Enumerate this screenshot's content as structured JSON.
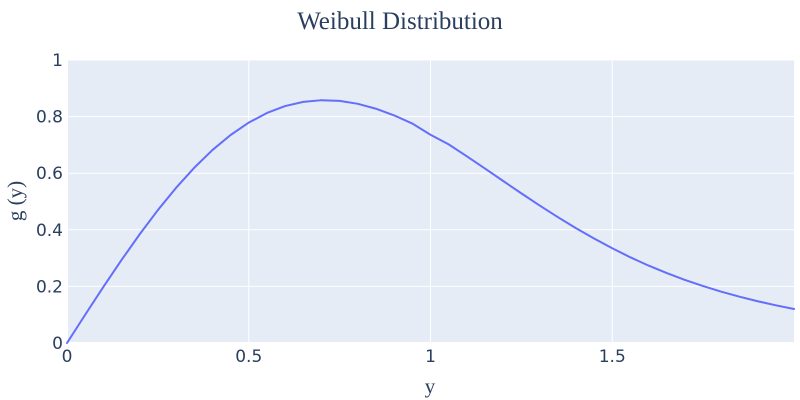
{
  "chart_data": {
    "type": "line",
    "title": "Weibull Distribution",
    "xlabel": "y",
    "ylabel": "g (y)",
    "xlim": [
      0,
      2
    ],
    "ylim": [
      0,
      1
    ],
    "x_ticks": [
      {
        "value": 0,
        "label": "0"
      },
      {
        "value": 0.5,
        "label": "0.5"
      },
      {
        "value": 1,
        "label": "1"
      },
      {
        "value": 1.5,
        "label": "1.5"
      }
    ],
    "y_ticks": [
      {
        "value": 0,
        "label": "0"
      },
      {
        "value": 0.2,
        "label": "0.2"
      },
      {
        "value": 0.4,
        "label": "0.4"
      },
      {
        "value": 0.6,
        "label": "0.6"
      },
      {
        "value": 0.8,
        "label": "0.8"
      },
      {
        "value": 1,
        "label": "1"
      }
    ],
    "grid": true,
    "colors": {
      "line": "#636efa",
      "plot_background": "#e5ecf6",
      "grid": "#ffffff",
      "text": "#2a3f5f"
    },
    "series": [
      {
        "x": [
          0,
          0.05,
          0.1,
          0.15,
          0.2,
          0.25,
          0.3,
          0.35,
          0.4,
          0.45,
          0.5,
          0.55,
          0.6,
          0.65,
          0.7,
          0.75,
          0.8,
          0.85,
          0.9,
          0.95,
          1.0,
          1.05,
          1.1,
          1.15,
          1.2,
          1.25,
          1.3,
          1.35,
          1.4,
          1.45,
          1.5,
          1.55,
          1.6,
          1.65,
          1.7,
          1.75,
          1.8,
          1.85,
          1.9,
          1.95,
          2.0
        ],
        "y": [
          0,
          0.0998,
          0.198,
          0.2934,
          0.3843,
          0.4697,
          0.5483,
          0.6192,
          0.6817,
          0.735,
          0.7788,
          0.8128,
          0.8372,
          0.8521,
          0.858,
          0.8555,
          0.8452,
          0.8278,
          0.8043,
          0.7755,
          0.7358,
          0.7018,
          0.6597,
          0.6163,
          0.5724,
          0.5287,
          0.4861,
          0.445,
          0.4059,
          0.3691,
          0.3347,
          0.3027,
          0.2735,
          0.247,
          0.2229,
          0.2011,
          0.1814,
          0.1636,
          0.1476,
          0.1331,
          0.12
        ]
      }
    ]
  }
}
